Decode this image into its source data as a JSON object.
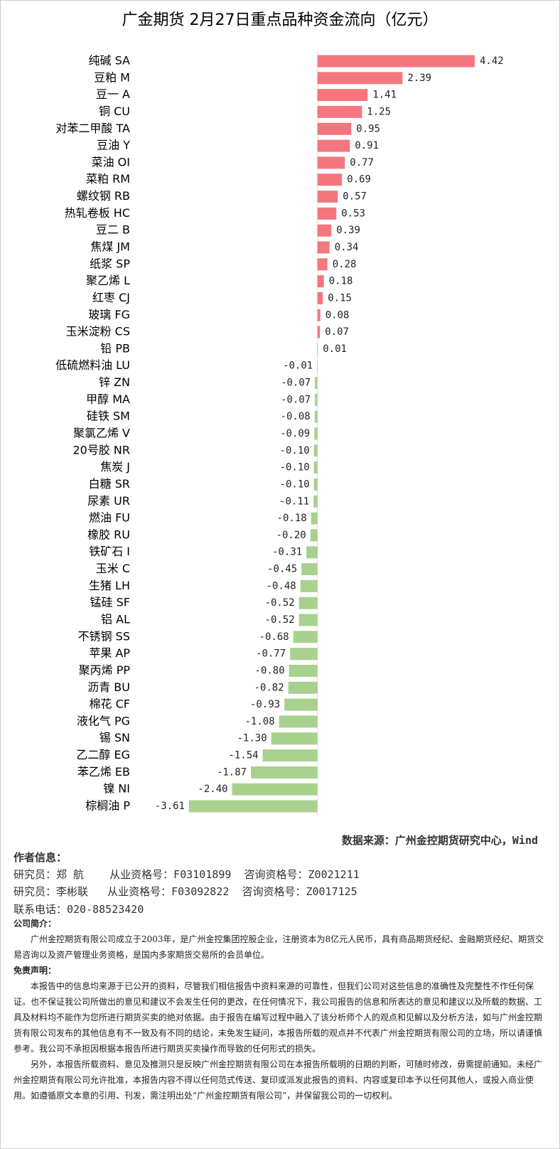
{
  "chart_data": {
    "type": "hbar",
    "title": "广金期货 2月27日重点品种资金流向（亿元）",
    "categories": [
      "纯碱 SA",
      "豆粕 M",
      "豆一 A",
      "铜 CU",
      "对苯二甲酸 TA",
      "豆油 Y",
      "菜油 OI",
      "菜粕 RM",
      "螺纹钢 RB",
      "热轧卷板 HC",
      "豆二 B",
      "焦煤 JM",
      "纸浆 SP",
      "聚乙烯 L",
      "红枣 CJ",
      "玻璃 FG",
      "玉米淀粉 CS",
      "铅 PB",
      "低硫燃料油 LU",
      "锌 ZN",
      "甲醇 MA",
      "硅铁 SM",
      "聚氯乙烯 V",
      "20号胶 NR",
      "焦炭 J",
      "白糖 SR",
      "尿素 UR",
      "燃油 FU",
      "橡胶 RU",
      "铁矿石 I",
      "玉米 C",
      "生猪 LH",
      "锰硅 SF",
      "铝 AL",
      "不锈钢 SS",
      "苹果 AP",
      "聚丙烯 PP",
      "沥青 BU",
      "棉花 CF",
      "液化气 PG",
      "锡 SN",
      "乙二醇 EG",
      "苯乙烯 EB",
      "镍 NI",
      "棕榈油 P"
    ],
    "values": [
      4.42,
      2.39,
      1.41,
      1.25,
      0.95,
      0.91,
      0.77,
      0.69,
      0.57,
      0.53,
      0.39,
      0.34,
      0.28,
      0.18,
      0.15,
      0.08,
      0.07,
      0.01,
      -0.01,
      -0.07,
      -0.07,
      -0.08,
      -0.09,
      -0.1,
      -0.1,
      -0.1,
      -0.11,
      -0.18,
      -0.2,
      -0.31,
      -0.45,
      -0.48,
      -0.52,
      -0.52,
      -0.68,
      -0.77,
      -0.8,
      -0.82,
      -0.93,
      -1.08,
      -1.3,
      -1.54,
      -1.87,
      -2.4,
      -3.61
    ],
    "value_labels": [
      "4.42",
      "2.39",
      "1.41",
      "1.25",
      "0.95",
      "0.91",
      "0.77",
      "0.69",
      "0.57",
      "0.53",
      "0.39",
      "0.34",
      "0.28",
      "0.18",
      "0.15",
      "0.08",
      "0.07",
      "0.01",
      "-0.01",
      "-0.07",
      "-0.07",
      "-0.08",
      "-0.09",
      "-0.10",
      "-0.10",
      "-0.10",
      "-0.11",
      "-0.18",
      "-0.20",
      "-0.31",
      "-0.45",
      "-0.48",
      "-0.52",
      "-0.52",
      "-0.68",
      "-0.77",
      "-0.80",
      "-0.82",
      "-0.93",
      "-1.08",
      "-1.30",
      "-1.54",
      "-1.87",
      "-2.40",
      "-3.61"
    ],
    "colors": {
      "positive": "#f4777f",
      "negative": "#a9d18e"
    }
  },
  "footer": {
    "source": "数据来源：广州金控期货研究中心，Wind",
    "author_heading": "作者信息：",
    "authors": [
      {
        "role": "研究员：郑 航",
        "license": "从业资格号：F03101899",
        "consult": "咨询资格号：Z0021211"
      },
      {
        "role": "研究员：李彬联",
        "license": "从业资格号：F03092822",
        "consult": "咨询资格号：Z0017125"
      }
    ],
    "phone": "联系电话：020-88523420",
    "company_heading": "公司简介：",
    "company_text": "广州金控期货有限公司成立于2003年，是广州金控集团控股企业，注册资本为8亿元人民币，具有商品期货经纪、金融期货经纪、期货交易咨询以及资产管理业务资格，是国内多家期货交易所的会员单位。",
    "disclaimer_heading": "免责声明：",
    "disclaimer": [
      "本报告中的信息均来源于已公开的资料，尽管我们相信报告中资料来源的可靠性，但我们公司对这些信息的准确性及完整性不作任何保证。也不保证我公司所做出的意见和建议不会发生任何的更改，在任何情况下，我公司报告的信息和所表达的意见和建议以及所载的数据、工具及材料均不能作为您所进行期货买卖的绝对依据。由于报告在编写过程中融入了该分析师个人的观点和见解以及分析方法，如与广州金控期货有限公司发布的其他信息有不一致及有不同的结论，未免发生疑问，本报告所载的观点并不代表广州金控期货有限公司的立场，所以请谨慎参考。我公司不承担因根据本报告所进行期货买卖操作而导致的任何形式的损失。",
      "另外，本报告所载资料、意见及推测只是反映广州金控期货有限公司在本报告所载明的日期的判断，可随时修改，毋需提前通知。未经广州金控期货有限公司允许批准，本报告内容不得以任何范式传送、复印或派发此报告的资料、内容或复印本予以任何其他人，或投入商业使用。如遵循原文本意的引用、刊发，需注明出处“广州金控期货有限公司”，并保留我公司的一切权利。"
    ]
  }
}
